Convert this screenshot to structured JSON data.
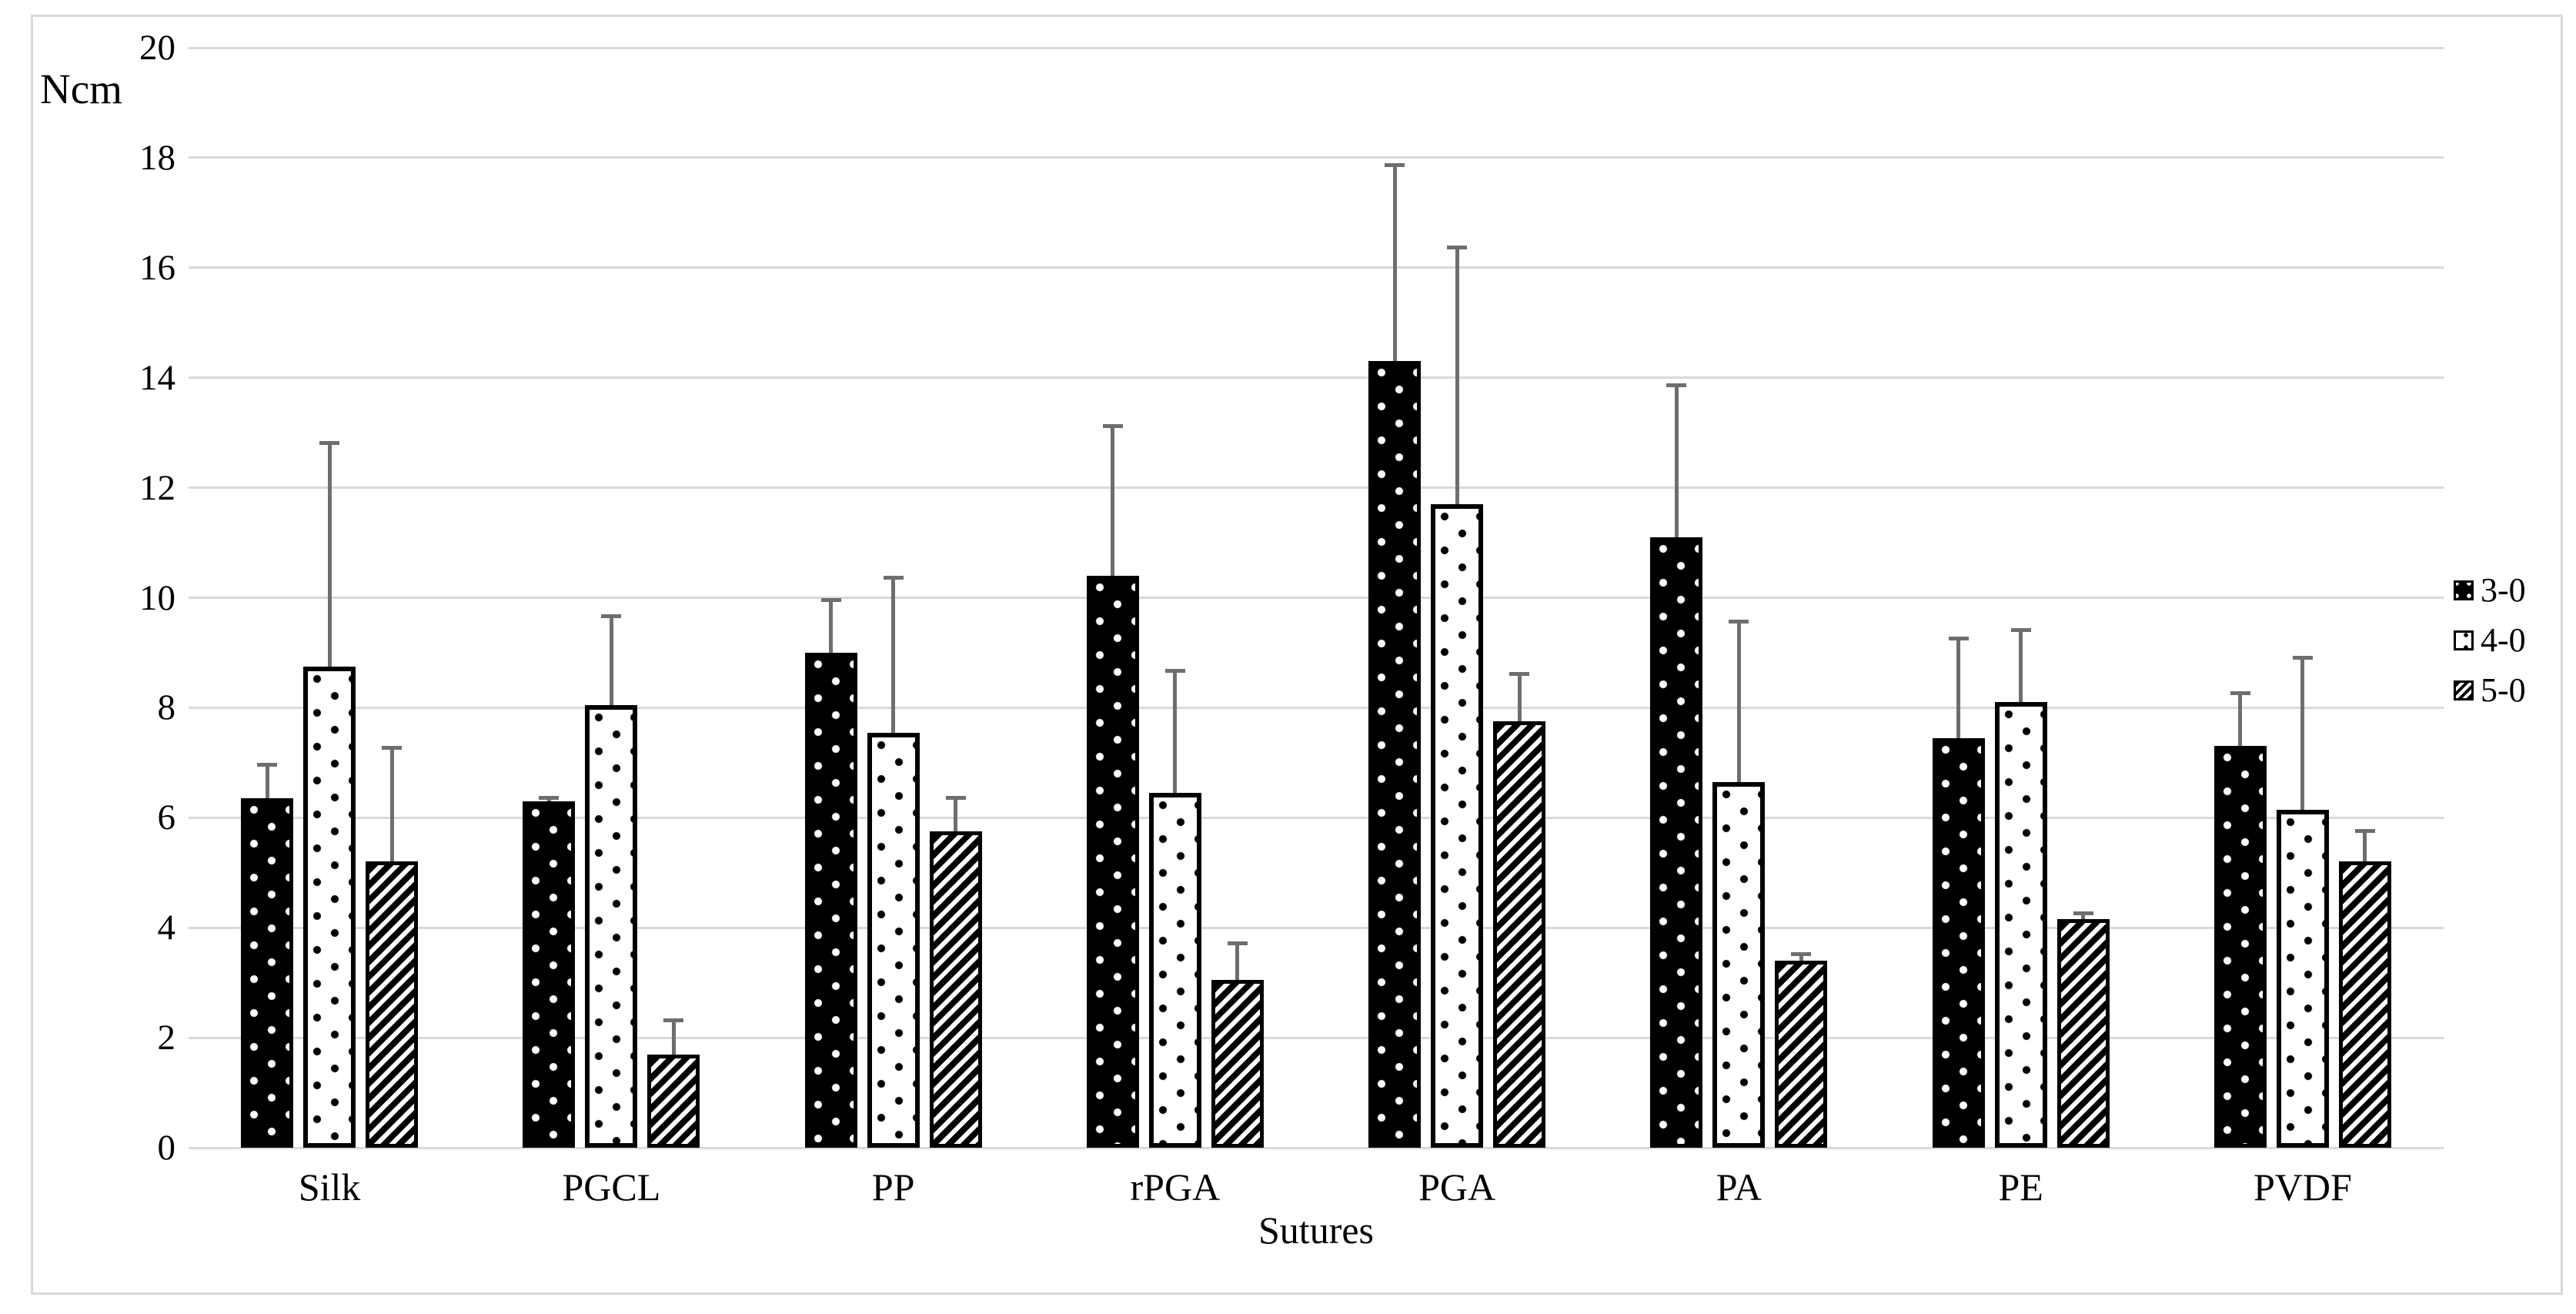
{
  "figure": {
    "y_axis_unit_label": "Ncm",
    "x_axis_title": "Sutures"
  },
  "legend": {
    "position": "right",
    "items": [
      {
        "label": "3-0",
        "pattern": "black-with-white-dots"
      },
      {
        "label": "4-0",
        "pattern": "white-with-black-dots"
      },
      {
        "label": "5-0",
        "pattern": "diagonal-stripes"
      }
    ]
  },
  "chart_data": {
    "type": "bar",
    "title": "",
    "xlabel": "Sutures",
    "ylabel": "Ncm",
    "ylim": [
      0,
      20
    ],
    "y_tick_step": 2,
    "grid": true,
    "legend_position": "right",
    "categories": [
      "Silk",
      "PGCL",
      "PP",
      "rPGA",
      "PGA",
      "PA",
      "PE",
      "PVDF"
    ],
    "series": [
      {
        "name": "3-0",
        "pattern": "black-with-white-dots",
        "values": [
          6.35,
          6.3,
          9.0,
          10.4,
          14.3,
          11.1,
          7.45,
          7.3
        ],
        "error_plus": [
          0.65,
          0.1,
          1.0,
          2.75,
          3.6,
          2.8,
          1.85,
          1.0
        ]
      },
      {
        "name": "4-0",
        "pattern": "white-with-black-dots",
        "values": [
          8.75,
          8.05,
          7.55,
          6.45,
          11.7,
          6.65,
          8.1,
          6.15
        ],
        "error_plus": [
          4.1,
          1.65,
          2.85,
          2.25,
          4.7,
          2.95,
          1.35,
          2.8
        ]
      },
      {
        "name": "5-0",
        "pattern": "diagonal-stripes",
        "values": [
          5.2,
          1.7,
          5.75,
          3.05,
          7.75,
          3.4,
          4.15,
          5.2
        ],
        "error_plus": [
          2.1,
          0.65,
          0.65,
          0.7,
          0.9,
          0.15,
          0.15,
          0.6
        ]
      }
    ],
    "colors": {
      "bar_fill_dark": "#000000",
      "bar_fill_light": "#ffffff",
      "bar_border": "#000000",
      "error_bar": "#6e6e6e",
      "gridline": "#d9d9d9",
      "figure_border": "#d9d9d9",
      "text": "#000000",
      "background": "#ffffff"
    }
  }
}
